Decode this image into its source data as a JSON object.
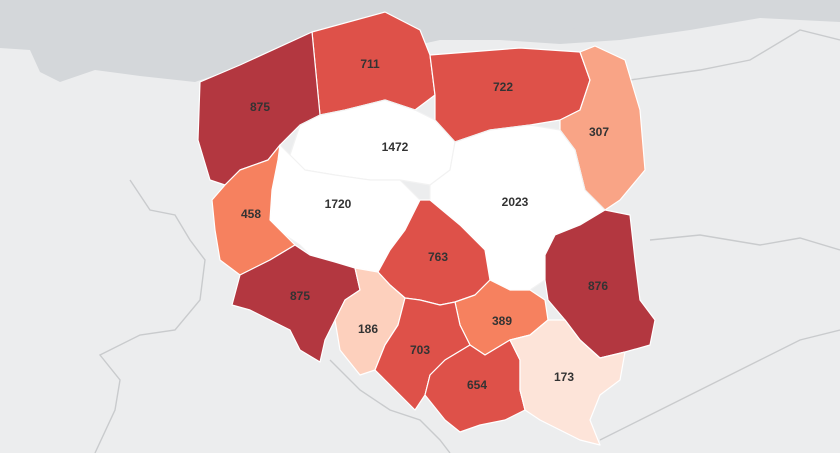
{
  "map": {
    "background_color": "#ecedee",
    "sea_color": "#d4d7da",
    "regions": [
      {
        "name": "pomorskie",
        "value": "711",
        "color": "#de5149"
      },
      {
        "name": "warminsko-mazurskie",
        "value": "722",
        "color": "#de5149"
      },
      {
        "name": "podlaskie",
        "value": "307",
        "color": "#f9a486"
      },
      {
        "name": "zachodniopomorskie",
        "value": "875",
        "color": "#b33740"
      },
      {
        "name": "kujawsko-pomorskie",
        "value": "1472",
        "color": "#ffffff"
      },
      {
        "name": "wielkopolskie",
        "value": "1720",
        "color": "#ffffff"
      },
      {
        "name": "mazowieckie",
        "value": "2023",
        "color": "#ffffff"
      },
      {
        "name": "lubuskie",
        "value": "458",
        "color": "#f6815f"
      },
      {
        "name": "lodzkie",
        "value": "763",
        "color": "#de5149"
      },
      {
        "name": "dolnoslaskie",
        "value": "875",
        "color": "#b33740"
      },
      {
        "name": "lubelskie",
        "value": "876",
        "color": "#b33740"
      },
      {
        "name": "opolskie",
        "value": "186",
        "color": "#fdd0bd"
      },
      {
        "name": "swietokrzyskie",
        "value": "389",
        "color": "#f6815f"
      },
      {
        "name": "slaskie",
        "value": "703",
        "color": "#de5149"
      },
      {
        "name": "malopolskie",
        "value": "654",
        "color": "#de5149"
      },
      {
        "name": "podkarpackie",
        "value": "173",
        "color": "#fde4d9"
      }
    ]
  }
}
